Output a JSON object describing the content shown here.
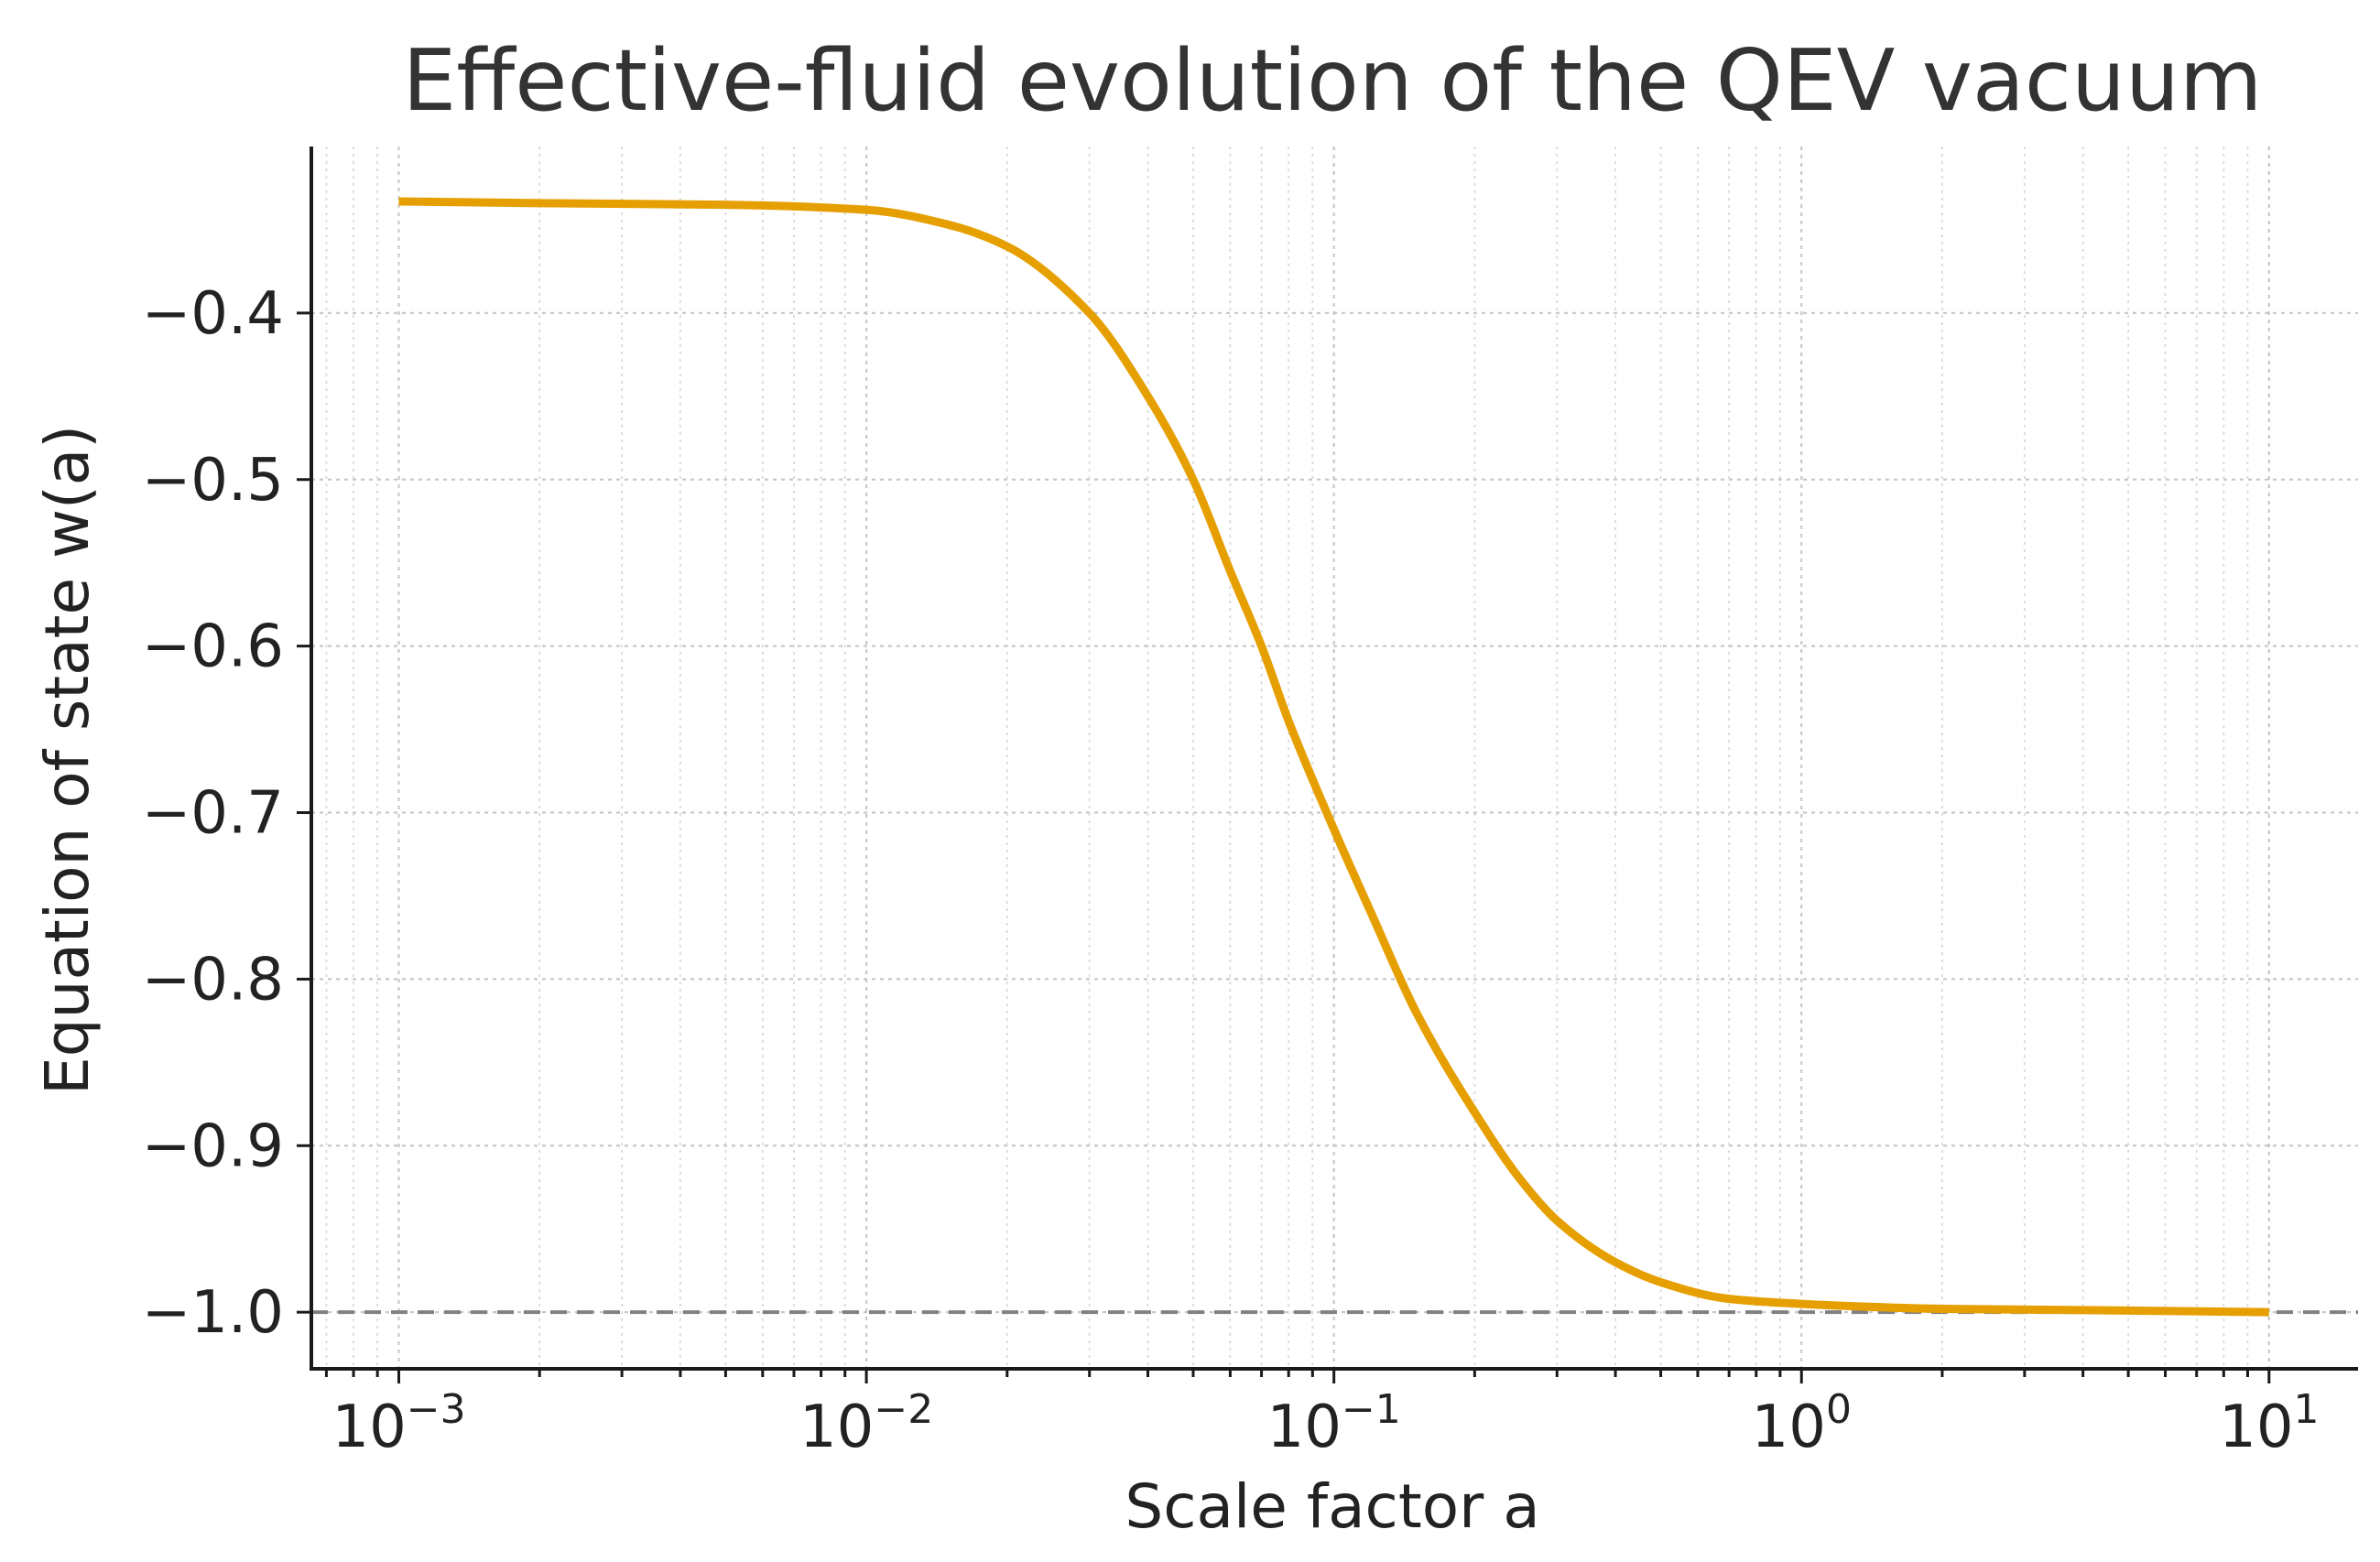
{
  "chart_data": {
    "type": "line",
    "title": "Effective-fluid evolution of the QEV vacuum",
    "xlabel": "Scale factor  a",
    "ylabel": "Equation of state  w(a)",
    "xscale": "log",
    "xlim": [
      0.00065,
      15.5
    ],
    "ylim": [
      -1.034,
      -0.3
    ],
    "grid": "major and minor, dotted",
    "x_ticks": [
      {
        "base": "10",
        "exp": "−3"
      },
      {
        "base": "10",
        "exp": "−2"
      },
      {
        "base": "10",
        "exp": "−1"
      },
      {
        "base": "10",
        "exp": "0"
      },
      {
        "base": "10",
        "exp": "1"
      }
    ],
    "y_ticks": [
      "−0.4",
      "−0.5",
      "−0.6",
      "−0.7",
      "−0.8",
      "−0.9",
      "−1.0"
    ],
    "reference_lines": [
      {
        "orientation": "horizontal",
        "y": -1.0,
        "style": "dashed",
        "color": "#808080"
      }
    ],
    "series": [
      {
        "name": "w(a)",
        "color": "#E69F00",
        "x": [
          0.001,
          0.002,
          0.005,
          0.01,
          0.015,
          0.02,
          0.03,
          0.04,
          0.05,
          0.06,
          0.07,
          0.08,
          0.1,
          0.12,
          0.15,
          0.2,
          0.25,
          0.3,
          0.4,
          0.5,
          0.7,
          1.0,
          2.0,
          5.0,
          10.0
        ],
        "y": [
          -0.333,
          -0.334,
          -0.335,
          -0.338,
          -0.347,
          -0.36,
          -0.4,
          -0.45,
          -0.5,
          -0.555,
          -0.6,
          -0.645,
          -0.71,
          -0.76,
          -0.82,
          -0.88,
          -0.92,
          -0.945,
          -0.97,
          -0.982,
          -0.992,
          -0.995,
          -0.998,
          -0.999,
          -1.0
        ]
      }
    ]
  }
}
